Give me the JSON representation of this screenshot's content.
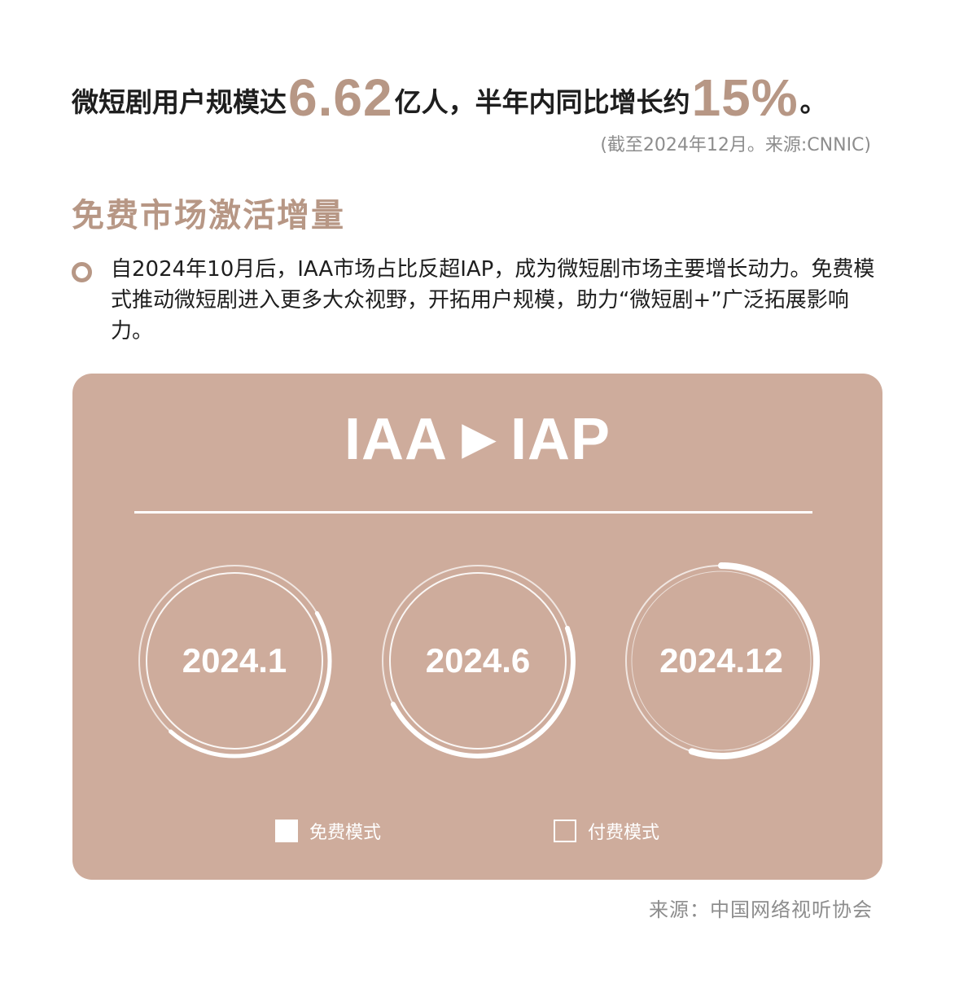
{
  "headline": {
    "pre": "微短剧用户规模达",
    "users_value": "6.62",
    "mid": "亿人，半年内同比增长约",
    "growth_value": "15%",
    "post": "。"
  },
  "note": "(截至2024年12月。来源:CNNIC)",
  "section": {
    "title": "免费市场激活增量",
    "body": "自2024年10月后，IAA市场占比反超IAP，成为微短剧市场主要增长动力。免费模式推动微短剧进入更多大众视野，开拓用户规模，助力“微短剧+”广泛拓展影响力。"
  },
  "card": {
    "title_left": "IAA",
    "title_arrow": "▶",
    "title_right": "IAP",
    "periods": [
      {
        "label": "2024.1",
        "free_share": 0.45
      },
      {
        "label": "2024.6",
        "free_share": 0.48
      },
      {
        "label": "2024.12",
        "free_share": 0.55
      }
    ],
    "legend": {
      "free": "免费模式",
      "paid": "付费模式"
    }
  },
  "colors": {
    "accent": "#b79785",
    "card_bg": "#ceac9c",
    "text": "#1e1e1e",
    "muted": "#8d8d8d"
  },
  "source": "来源：中国网络视听协会"
}
